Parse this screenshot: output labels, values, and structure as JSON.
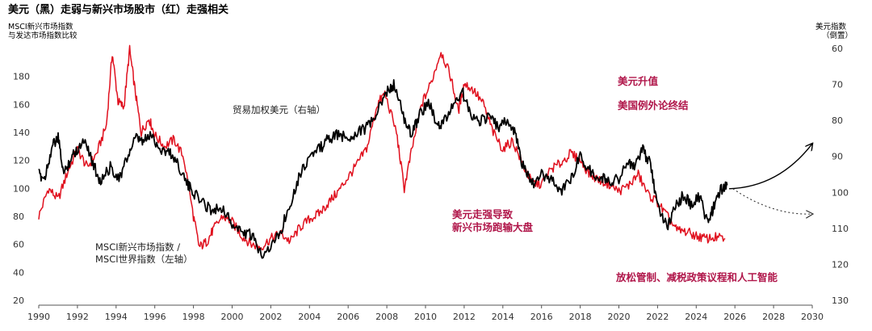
{
  "chart_data": {
    "type": "line",
    "title": "美元（黑）走弱与新兴市场股市（红）走强相关",
    "left_axis_label_lines": [
      "MSCI新兴市场指数",
      "与发达市场指数比较"
    ],
    "right_axis_label_lines": [
      "美元指数",
      "（倒置）"
    ],
    "x_ticks": [
      "1990",
      "1992",
      "1994",
      "1996",
      "1998",
      "2000",
      "2002",
      "2004",
      "2006",
      "2008",
      "2010",
      "2012",
      "2014",
      "2016",
      "2018",
      "2020",
      "2022",
      "2024",
      "2026",
      "2028",
      "2030"
    ],
    "xlim": [
      1990,
      2030
    ],
    "left_ticks": [
      "20",
      "40",
      "60",
      "80",
      "100",
      "120",
      "140",
      "160",
      "180"
    ],
    "left_ylim": [
      20,
      200
    ],
    "right_ticks": [
      "60",
      "70",
      "80",
      "90",
      "100",
      "110",
      "120",
      "130"
    ],
    "right_ylim": [
      130,
      60
    ],
    "right_inverted": true,
    "series": [
      {
        "name": "MSCI新兴市场指数 / MSCI世界指数（左轴）",
        "color": "#e0101e",
        "axis": "left",
        "points": [
          [
            1990.0,
            80
          ],
          [
            1990.5,
            100
          ],
          [
            1991.0,
            92
          ],
          [
            1991.5,
            112
          ],
          [
            1992.0,
            128
          ],
          [
            1992.5,
            115
          ],
          [
            1993.0,
            125
          ],
          [
            1993.5,
            145
          ],
          [
            1993.8,
            197
          ],
          [
            1994.1,
            162
          ],
          [
            1994.4,
            158
          ],
          [
            1994.7,
            199
          ],
          [
            1995.0,
            168
          ],
          [
            1995.3,
            140
          ],
          [
            1995.7,
            150
          ],
          [
            1996.0,
            138
          ],
          [
            1996.5,
            130
          ],
          [
            1997.0,
            135
          ],
          [
            1997.5,
            122
          ],
          [
            1998.0,
            80
          ],
          [
            1998.3,
            58
          ],
          [
            1998.7,
            62
          ],
          [
            1999.0,
            70
          ],
          [
            1999.5,
            80
          ],
          [
            2000.0,
            76
          ],
          [
            2000.5,
            66
          ],
          [
            2001.0,
            60
          ],
          [
            2001.5,
            58
          ],
          [
            2002.0,
            64
          ],
          [
            2002.5,
            68
          ],
          [
            2003.0,
            62
          ],
          [
            2003.5,
            72
          ],
          [
            2004.0,
            78
          ],
          [
            2004.5,
            82
          ],
          [
            2005.0,
            90
          ],
          [
            2005.5,
            98
          ],
          [
            2006.0,
            108
          ],
          [
            2006.5,
            118
          ],
          [
            2007.0,
            130
          ],
          [
            2007.5,
            160
          ],
          [
            2007.9,
            168
          ],
          [
            2008.5,
            140
          ],
          [
            2008.9,
            100
          ],
          [
            2009.3,
            128
          ],
          [
            2009.8,
            160
          ],
          [
            2010.3,
            176
          ],
          [
            2010.8,
            198
          ],
          [
            2011.3,
            180
          ],
          [
            2011.7,
            155
          ],
          [
            2012.0,
            175
          ],
          [
            2012.5,
            170
          ],
          [
            2013.0,
            160
          ],
          [
            2013.5,
            140
          ],
          [
            2014.0,
            128
          ],
          [
            2014.5,
            134
          ],
          [
            2015.0,
            118
          ],
          [
            2015.5,
            104
          ],
          [
            2016.0,
            103
          ],
          [
            2016.5,
            114
          ],
          [
            2017.0,
            118
          ],
          [
            2017.5,
            125
          ],
          [
            2018.0,
            120
          ],
          [
            2018.5,
            110
          ],
          [
            2019.0,
            106
          ],
          [
            2019.5,
            103
          ],
          [
            2020.0,
            98
          ],
          [
            2020.5,
            102
          ],
          [
            2021.0,
            110
          ],
          [
            2021.5,
            96
          ],
          [
            2022.0,
            90
          ],
          [
            2022.5,
            80
          ],
          [
            2023.0,
            70
          ],
          [
            2023.5,
            69
          ],
          [
            2024.0,
            66
          ],
          [
            2024.5,
            64
          ],
          [
            2025.0,
            65
          ],
          [
            2025.5,
            64
          ]
        ]
      },
      {
        "name": "贸易加权美元（右轴）",
        "color": "#000000",
        "axis": "right",
        "points": [
          [
            1990.0,
            95
          ],
          [
            1990.3,
            96
          ],
          [
            1990.7,
            87
          ],
          [
            1991.0,
            85
          ],
          [
            1991.3,
            95
          ],
          [
            1991.7,
            90
          ],
          [
            1992.0,
            88
          ],
          [
            1992.4,
            85
          ],
          [
            1992.8,
            92
          ],
          [
            1993.2,
            97
          ],
          [
            1993.7,
            93
          ],
          [
            1994.2,
            96
          ],
          [
            1994.6,
            90
          ],
          [
            1995.0,
            85
          ],
          [
            1995.4,
            86
          ],
          [
            1995.8,
            84
          ],
          [
            1996.3,
            88
          ],
          [
            1996.8,
            89
          ],
          [
            1997.2,
            92
          ],
          [
            1997.7,
            98
          ],
          [
            1998.0,
            100
          ],
          [
            1998.5,
            103
          ],
          [
            1999.0,
            105
          ],
          [
            1999.5,
            104
          ],
          [
            2000.0,
            109
          ],
          [
            2000.5,
            111
          ],
          [
            2001.0,
            112
          ],
          [
            2001.5,
            117
          ],
          [
            2002.0,
            115
          ],
          [
            2002.5,
            111
          ],
          [
            2003.0,
            103
          ],
          [
            2003.5,
            95
          ],
          [
            2004.0,
            90
          ],
          [
            2004.5,
            88
          ],
          [
            2005.0,
            85
          ],
          [
            2005.5,
            84
          ],
          [
            2006.0,
            85
          ],
          [
            2006.5,
            83
          ],
          [
            2007.0,
            82
          ],
          [
            2007.5,
            78
          ],
          [
            2008.0,
            72
          ],
          [
            2008.4,
            70
          ],
          [
            2008.9,
            80
          ],
          [
            2009.3,
            84
          ],
          [
            2009.7,
            78
          ],
          [
            2010.2,
            75
          ],
          [
            2010.6,
            82
          ],
          [
            2011.0,
            80
          ],
          [
            2011.5,
            75
          ],
          [
            2011.9,
            72
          ],
          [
            2012.3,
            78
          ],
          [
            2012.8,
            80
          ],
          [
            2013.3,
            79
          ],
          [
            2013.8,
            82
          ],
          [
            2014.2,
            80
          ],
          [
            2014.6,
            83
          ],
          [
            2015.0,
            92
          ],
          [
            2015.5,
            98
          ],
          [
            2016.0,
            95
          ],
          [
            2016.5,
            96
          ],
          [
            2017.0,
            100
          ],
          [
            2017.5,
            96
          ],
          [
            2018.0,
            90
          ],
          [
            2018.5,
            94
          ],
          [
            2019.0,
            96
          ],
          [
            2019.5,
            97
          ],
          [
            2020.0,
            96
          ],
          [
            2020.4,
            92
          ],
          [
            2020.8,
            93
          ],
          [
            2021.2,
            88
          ],
          [
            2021.6,
            92
          ],
          [
            2022.0,
            103
          ],
          [
            2022.5,
            110
          ],
          [
            2022.9,
            104
          ],
          [
            2023.3,
            101
          ],
          [
            2023.7,
            103
          ],
          [
            2024.2,
            101
          ],
          [
            2024.6,
            109
          ],
          [
            2024.9,
            104
          ],
          [
            2025.3,
            99
          ],
          [
            2025.6,
            98
          ]
        ]
      }
    ],
    "labels": {
      "dollar_series": "贸易加权美元（右轴）",
      "em_series_line1": "MSCI新兴市场指数 /",
      "em_series_line2": "MSCI世界指数（左轴）"
    },
    "annotations": {
      "rise_line1": "美元升值",
      "rise_line2": "美国例外论终结",
      "weak_line1": "美元走强导致",
      "weak_line2": "新兴市场跑输大盘",
      "policy": "放松管制、减税政策议程和人工智能"
    },
    "projection": {
      "axis": "right",
      "up_arrow": [
        [
          2025.7,
          99
        ],
        [
          2030.0,
          86.5
        ]
      ],
      "down_arrow": [
        [
          2025.9,
          99
        ],
        [
          2030.0,
          106
        ]
      ]
    }
  }
}
